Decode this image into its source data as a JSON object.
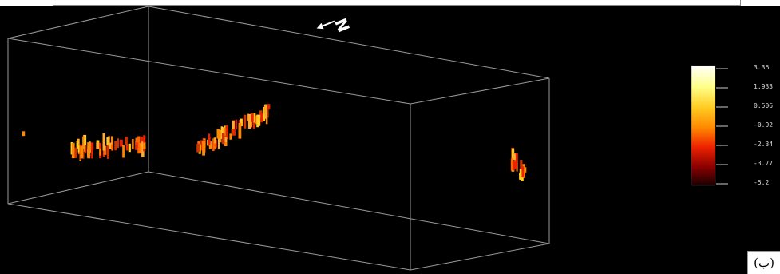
{
  "north_arrow": {
    "label": "N",
    "icon": "north-arrow-icon"
  },
  "colorbar": {
    "ticks": [
      "3.36",
      "1.933",
      "0.506",
      "-0.92",
      "-2.34",
      "-3.77",
      "-5.2"
    ],
    "max": 3.36,
    "min": -5.2,
    "colormap": [
      "#ffffff",
      "#ffff88",
      "#ffcc22",
      "#ff8800",
      "#ee2200",
      "#880000",
      "#1a0000"
    ]
  },
  "panel_label": "(ب)",
  "colors": {
    "background": "#000000",
    "box_edges": "#9a9a9a"
  }
}
